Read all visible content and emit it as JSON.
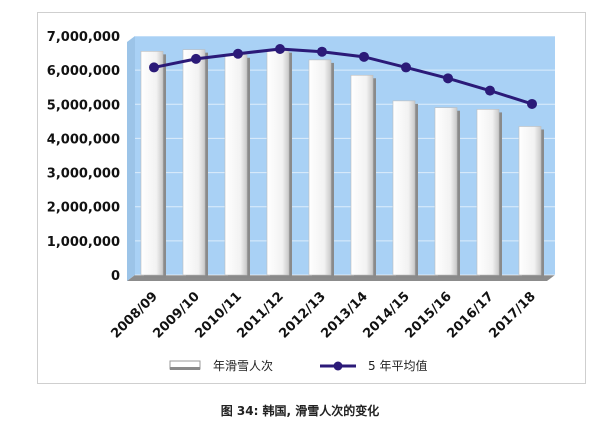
{
  "chart_data": {
    "type": "bar",
    "categories": [
      "2008/09",
      "2009/10",
      "2010/11",
      "2011/12",
      "2012/13",
      "2013/14",
      "2014/15",
      "2015/16",
      "2016/17",
      "2017/18"
    ],
    "series": [
      {
        "name": "年滑雪人次",
        "type": "bar",
        "values": [
          6550000,
          6600000,
          6450000,
          6600000,
          6300000,
          5850000,
          5100000,
          4900000,
          4850000,
          4350000
        ]
      },
      {
        "name": "5 年平均值",
        "type": "line",
        "values": [
          6080000,
          6330000,
          6480000,
          6620000,
          6540000,
          6390000,
          6080000,
          5760000,
          5400000,
          5010000
        ]
      }
    ],
    "ylim": [
      0,
      7000000
    ],
    "yticks": [
      "0",
      "1,000,000",
      "2,000,000",
      "3,000,000",
      "4,000,000",
      "5,000,000",
      "6,000,000",
      "7,000,000"
    ],
    "legend_position": "bottom",
    "colors": {
      "plot_bg": "#a9d1f5",
      "bar_fill": "#ffffff",
      "bar_shade": "#8a8a8a",
      "line": "#2b1a78"
    }
  },
  "caption": "图 34: 韩国, 滑雪人次的变化"
}
